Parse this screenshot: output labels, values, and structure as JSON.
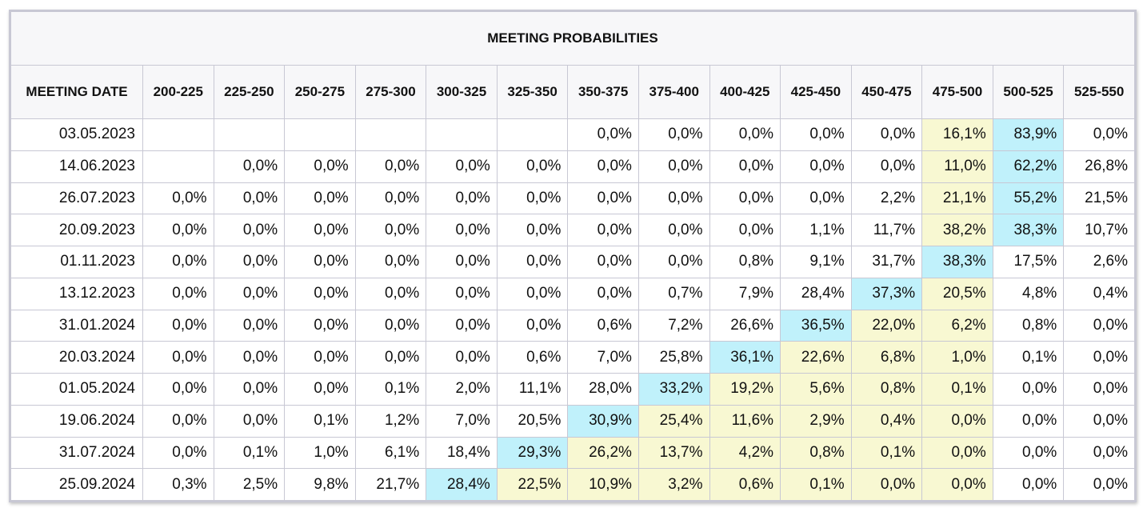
{
  "chart_data": {
    "type": "table",
    "title": "MEETING PROBABILITIES",
    "columns": [
      "MEETING DATE",
      "200-225",
      "225-250",
      "250-275",
      "275-300",
      "300-325",
      "325-350",
      "350-375",
      "375-400",
      "400-425",
      "425-450",
      "450-475",
      "475-500",
      "500-525",
      "525-550"
    ],
    "rows": [
      {
        "date": "03.05.2023",
        "values": [
          "",
          "",
          "",
          "",
          "",
          "",
          "0,0%",
          "0,0%",
          "0,0%",
          "0,0%",
          "0,0%",
          "16,1%",
          "83,9%",
          "0,0%"
        ],
        "hl": [
          "",
          "",
          "",
          "",
          "",
          "",
          "",
          "",
          "",
          "",
          "",
          "y",
          "b",
          ""
        ]
      },
      {
        "date": "14.06.2023",
        "values": [
          "",
          "0,0%",
          "0,0%",
          "0,0%",
          "0,0%",
          "0,0%",
          "0,0%",
          "0,0%",
          "0,0%",
          "0,0%",
          "0,0%",
          "11,0%",
          "62,2%",
          "26,8%"
        ],
        "hl": [
          "",
          "",
          "",
          "",
          "",
          "",
          "",
          "",
          "",
          "",
          "",
          "y",
          "b",
          ""
        ]
      },
      {
        "date": "26.07.2023",
        "values": [
          "0,0%",
          "0,0%",
          "0,0%",
          "0,0%",
          "0,0%",
          "0,0%",
          "0,0%",
          "0,0%",
          "0,0%",
          "0,0%",
          "2,2%",
          "21,1%",
          "55,2%",
          "21,5%"
        ],
        "hl": [
          "",
          "",
          "",
          "",
          "",
          "",
          "",
          "",
          "",
          "",
          "",
          "y",
          "b",
          ""
        ]
      },
      {
        "date": "20.09.2023",
        "values": [
          "0,0%",
          "0,0%",
          "0,0%",
          "0,0%",
          "0,0%",
          "0,0%",
          "0,0%",
          "0,0%",
          "0,0%",
          "1,1%",
          "11,7%",
          "38,2%",
          "38,3%",
          "10,7%"
        ],
        "hl": [
          "",
          "",
          "",
          "",
          "",
          "",
          "",
          "",
          "",
          "",
          "",
          "y",
          "b",
          ""
        ]
      },
      {
        "date": "01.11.2023",
        "values": [
          "0,0%",
          "0,0%",
          "0,0%",
          "0,0%",
          "0,0%",
          "0,0%",
          "0,0%",
          "0,0%",
          "0,8%",
          "9,1%",
          "31,7%",
          "38,3%",
          "17,5%",
          "2,6%"
        ],
        "hl": [
          "",
          "",
          "",
          "",
          "",
          "",
          "",
          "",
          "",
          "",
          "",
          "b",
          "",
          ""
        ]
      },
      {
        "date": "13.12.2023",
        "values": [
          "0,0%",
          "0,0%",
          "0,0%",
          "0,0%",
          "0,0%",
          "0,0%",
          "0,0%",
          "0,7%",
          "7,9%",
          "28,4%",
          "37,3%",
          "20,5%",
          "4,8%",
          "0,4%"
        ],
        "hl": [
          "",
          "",
          "",
          "",
          "",
          "",
          "",
          "",
          "",
          "",
          "b",
          "y",
          "",
          ""
        ]
      },
      {
        "date": "31.01.2024",
        "values": [
          "0,0%",
          "0,0%",
          "0,0%",
          "0,0%",
          "0,0%",
          "0,0%",
          "0,6%",
          "7,2%",
          "26,6%",
          "36,5%",
          "22,0%",
          "6,2%",
          "0,8%",
          "0,0%"
        ],
        "hl": [
          "",
          "",
          "",
          "",
          "",
          "",
          "",
          "",
          "",
          "b",
          "y",
          "y",
          "",
          ""
        ]
      },
      {
        "date": "20.03.2024",
        "values": [
          "0,0%",
          "0,0%",
          "0,0%",
          "0,0%",
          "0,0%",
          "0,6%",
          "7,0%",
          "25,8%",
          "36,1%",
          "22,6%",
          "6,8%",
          "1,0%",
          "0,1%",
          "0,0%"
        ],
        "hl": [
          "",
          "",
          "",
          "",
          "",
          "",
          "",
          "",
          "b",
          "y",
          "y",
          "y",
          "",
          ""
        ]
      },
      {
        "date": "01.05.2024",
        "values": [
          "0,0%",
          "0,0%",
          "0,0%",
          "0,1%",
          "2,0%",
          "11,1%",
          "28,0%",
          "33,2%",
          "19,2%",
          "5,6%",
          "0,8%",
          "0,1%",
          "0,0%",
          "0,0%"
        ],
        "hl": [
          "",
          "",
          "",
          "",
          "",
          "",
          "",
          "b",
          "y",
          "y",
          "y",
          "y",
          "",
          ""
        ]
      },
      {
        "date": "19.06.2024",
        "values": [
          "0,0%",
          "0,0%",
          "0,1%",
          "1,2%",
          "7,0%",
          "20,5%",
          "30,9%",
          "25,4%",
          "11,6%",
          "2,9%",
          "0,4%",
          "0,0%",
          "0,0%",
          "0,0%"
        ],
        "hl": [
          "",
          "",
          "",
          "",
          "",
          "",
          "b",
          "y",
          "y",
          "y",
          "y",
          "y",
          "",
          ""
        ]
      },
      {
        "date": "31.07.2024",
        "values": [
          "0,0%",
          "0,1%",
          "1,0%",
          "6,1%",
          "18,4%",
          "29,3%",
          "26,2%",
          "13,7%",
          "4,2%",
          "0,8%",
          "0,1%",
          "0,0%",
          "0,0%",
          "0,0%"
        ],
        "hl": [
          "",
          "",
          "",
          "",
          "",
          "b",
          "y",
          "y",
          "y",
          "y",
          "y",
          "y",
          "",
          ""
        ]
      },
      {
        "date": "25.09.2024",
        "values": [
          "0,3%",
          "2,5%",
          "9,8%",
          "21,7%",
          "28,4%",
          "22,5%",
          "10,9%",
          "3,2%",
          "0,6%",
          "0,1%",
          "0,0%",
          "0,0%",
          "0,0%",
          "0,0%"
        ],
        "hl": [
          "",
          "",
          "",
          "",
          "b",
          "y",
          "y",
          "y",
          "y",
          "y",
          "y",
          "y",
          "",
          ""
        ]
      }
    ],
    "colors": {
      "highlight_blue": "#c0f1fb",
      "highlight_yellow": "#f8f8d2",
      "border": "#c8c8d4",
      "header_bg": "#f7f7f9"
    }
  }
}
